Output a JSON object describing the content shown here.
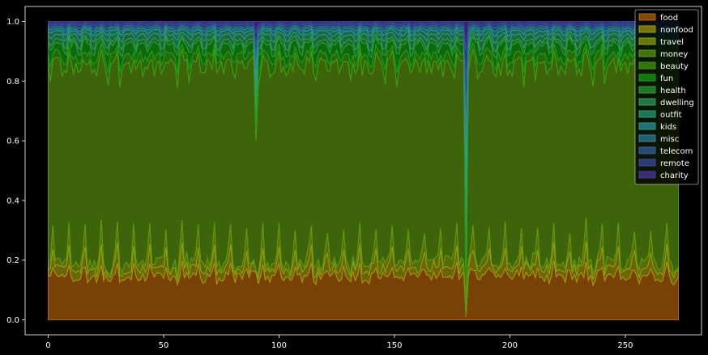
{
  "chart_data": {
    "type": "area",
    "stacked": true,
    "normalized": true,
    "grid": false,
    "legend_position": "top-right",
    "xlim": [
      -10,
      283
    ],
    "ylim": [
      -0.05,
      1.05
    ],
    "x_ticks": [
      0,
      50,
      100,
      150,
      200,
      250
    ],
    "y_ticks": [
      0.0,
      0.2,
      0.4,
      0.6,
      0.8,
      1.0
    ],
    "x_tick_labels": [
      "0",
      "50",
      "100",
      "150",
      "200",
      "250"
    ],
    "y_tick_labels": [
      "0.0",
      "0.2",
      "0.4",
      "0.6",
      "0.8",
      "1.0"
    ],
    "x_range": [
      0,
      273
    ],
    "series": [
      {
        "name": "food",
        "color": "#b8660a",
        "base_share": 0.15,
        "amplitude": 0.05,
        "period": 7
      },
      {
        "name": "nonfood",
        "color": "#a59b0c",
        "base_share": 0.035,
        "amplitude": 0.03,
        "period": 7
      },
      {
        "name": "travel",
        "color": "#8aa10f",
        "base_share": 0.035,
        "amplitude": 0.04,
        "period": 7
      },
      {
        "name": "money",
        "color": "#5e9a10",
        "base_share": 0.62,
        "amplitude": 0.05,
        "period": 7
      },
      {
        "name": "beauty",
        "color": "#3f9d12",
        "base_share": 0.03,
        "amplitude": 0.015,
        "period": 5
      },
      {
        "name": "fun",
        "color": "#17a015",
        "base_share": 0.035,
        "amplitude": 0.02,
        "period": 5
      },
      {
        "name": "health",
        "color": "#2a9e3a",
        "base_share": 0.015,
        "amplitude": 0.01,
        "period": 6
      },
      {
        "name": "dwelling",
        "color": "#2e9e5c",
        "base_share": 0.02,
        "amplitude": 0.01,
        "period": 6
      },
      {
        "name": "outfit",
        "color": "#2a9d7a",
        "base_share": 0.015,
        "amplitude": 0.008,
        "period": 6
      },
      {
        "name": "kids",
        "color": "#2b98a0",
        "base_share": 0.01,
        "amplitude": 0.006,
        "period": 6
      },
      {
        "name": "misc",
        "color": "#2f7fa0",
        "base_share": 0.008,
        "amplitude": 0.004,
        "period": 6
      },
      {
        "name": "telecom",
        "color": "#33629f",
        "base_share": 0.007,
        "amplitude": 0.003,
        "period": 6
      },
      {
        "name": "remote",
        "color": "#3a4b9e",
        "base_share": 0.005,
        "amplitude": 0.002,
        "period": 6
      },
      {
        "name": "charity",
        "color": "#4b3aa0",
        "base_share": 0.005,
        "amplitude": 0.002,
        "period": 6
      }
    ],
    "anomalies": [
      {
        "x": 90,
        "food": 0.16,
        "money_share_top": 0.6
      },
      {
        "x": 181,
        "food": 0.01,
        "money_share_top": 0.02
      }
    ]
  }
}
